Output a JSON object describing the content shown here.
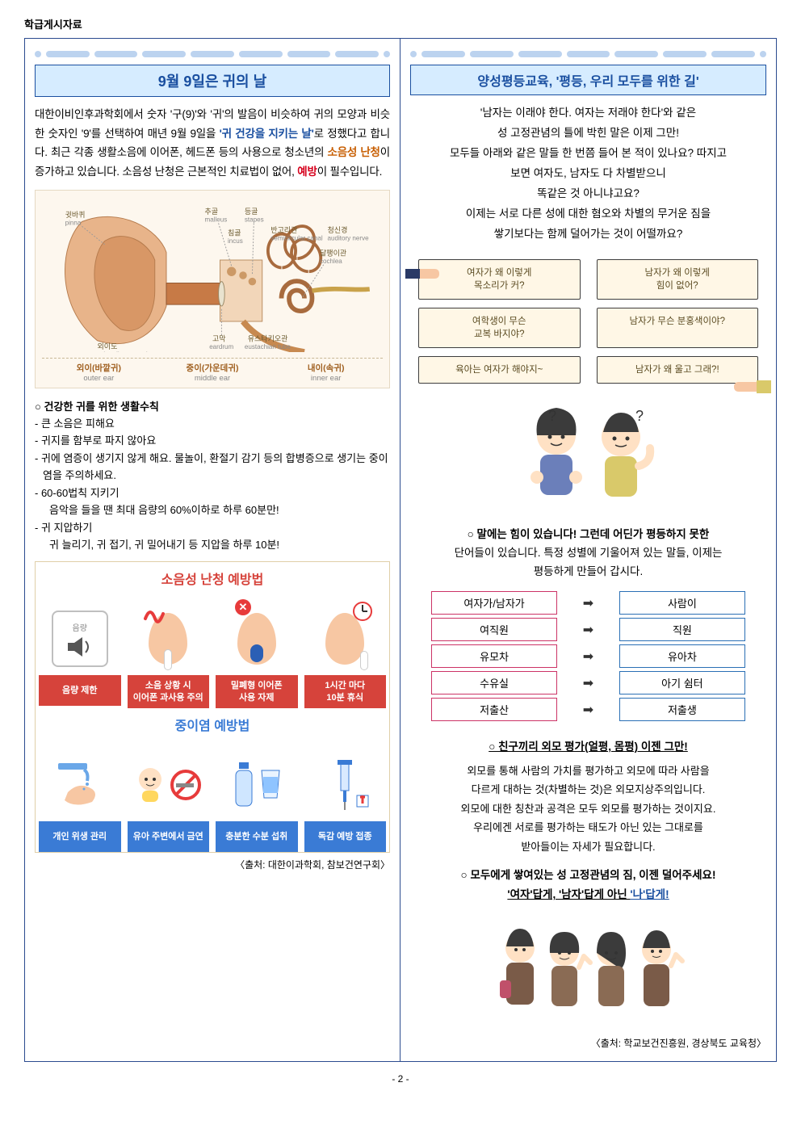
{
  "doc_label": "학급게시자료",
  "page_number": "- 2 -",
  "left": {
    "banner_title": "9월 9일은 귀의 날",
    "intro_parts": {
      "p1": "대한이비인후과학회에서 숫자 '구(9)'와 '귀'의 발음이 비슷하여 귀의 모양과 비슷한 숫자인 '9'를 선택하여 매년 9월 9일을 ",
      "kw1": "'귀 건강을 지키는 날'",
      "p2": "로 정했다고 합니다. 최근 각종 생활소음에 이어폰, 헤드폰 등의 사용으로 청소년의 ",
      "kw2": "소음성 난청",
      "p3": "이 증가하고 있습니다. 소음성 난청은 근본적인 치료법이 없어, ",
      "kw3": "예방",
      "p4": "이 필수입니다."
    },
    "ear_labels": {
      "pinna_ko": "귓바퀴",
      "pinna_en": "pinna",
      "malleus_ko": "추골",
      "malleus_en": "malleus",
      "stapes_ko": "등골",
      "stapes_en": "stapes",
      "incus_ko": "침골",
      "incus_en": "incus",
      "semicircular_ko": "반고리관",
      "semicircular_en": "semicircular canal",
      "auditory_ko": "청신경",
      "auditory_en": "auditory nerve",
      "cochlea_ko": "달팽이관",
      "cochlea_en": "cochlea",
      "eac_ko": "외이도",
      "eac_en": "external auditory canal",
      "eardrum_ko": "고막",
      "eardrum_en": "eardrum",
      "eustachian_ko": "유스타키오관",
      "eustachian_en": "eustachian tube"
    },
    "ear_regions": {
      "outer_ko": "외이(바깥귀)",
      "outer_en": "outer ear",
      "middle_ko": "중이(가운데귀)",
      "middle_en": "middle ear",
      "inner_ko": "내이(속귀)",
      "inner_en": "inner ear"
    },
    "rules": {
      "title": "○ 건강한 귀를 위한 생활수칙",
      "r1": "- 큰 소음은 피해요",
      "r2": "- 귀지를 함부로 파지 않아요",
      "r3": "- 귀에 염증이 생기지 않게 해요. 물놀이, 환절기 감기 등의 합병증으로 생기는 중이염을 주의하세요.",
      "r4": "- 60-60법칙 지키기",
      "r4b": "음악을 들을 땐 최대 음량의 60%이하로 하루 60분만!",
      "r5": "- 귀 지압하기",
      "r5b": "귀 늘리기, 귀 접기, 귀 밀어내기 등 지압을 하루 10분!"
    },
    "info1": {
      "title": "소음성 난청 예방법",
      "vol_char": "음량",
      "c1": "음량 제한",
      "c2": "소음 상황 시\n이어폰 과사용 주의",
      "c3": "밀폐형 이어폰\n사용 자제",
      "c4": "1시간 마다\n10분 휴식"
    },
    "info2": {
      "title": "중이염 예방법",
      "c1": "개인 위생 관리",
      "c2": "유아 주변에서 금연",
      "c3": "충분한 수분 섭취",
      "c4": "독감 예방 접종"
    },
    "source": "〈출처: 대한이과학회, 참보건연구회〉"
  },
  "right": {
    "banner_title": "양성평등교육, '평등, 우리 모두를 위한 길'",
    "intro": "'남자는 이래야 한다. 여자는 저래야 한다'와 같은\n성 고정관념의 틀에 박힌 말은 이제 그만!\n모두들 아래와 같은 말들 한 번쯤 들어 본 적이 있나요? 따지고\n보면 여자도, 남자도 다 차별받으니\n똑같은 것 아니냐고요?\n이제는 서로 다른 성에 대한 혐오와 차별의 무거운 짐을\n쌓기보다는 함께 덜어가는 것이 어떨까요?",
    "bubbles": {
      "b1": "여자가 왜 이렇게\n목소리가 커?",
      "b2": "남자가 왜 이렇게\n힘이 없어?",
      "b3": "여학생이 무슨\n교복 바지야?",
      "b4": "남자가 무슨 분홍색이야?",
      "b5": "육아는 여자가 해야지~",
      "b6": "남자가 왜 울고 그래?!"
    },
    "words_head1": "○ 말에는 힘이 있습니다! 그런데 어딘가 평등하지 못한",
    "words_head2": "단어들이 있습니다. 특정 성별에 기울어져 있는 말들, 이제는",
    "words_head3": "평등하게 만들어 갑시다.",
    "word_pairs": [
      {
        "l": "여자가/남자가",
        "r": "사람이"
      },
      {
        "l": "여직원",
        "r": "직원"
      },
      {
        "l": "유모차",
        "r": "유아차"
      },
      {
        "l": "수유실",
        "r": "아기 쉼터"
      },
      {
        "l": "저출산",
        "r": "저출생"
      }
    ],
    "looks_head": "○ 친구끼리 외모 평가(얼평, 몸평) 이젠 그만!",
    "looks_body": "외모를 통해 사람의 가치를 평가하고 외모에 따라 사람을\n다르게 대하는 것(차별하는 것)은 외모지상주의입니다.\n외모에 대한 칭찬과 공격은 모두 외모를 평가하는 것이지요.\n우리에겐 서로를 평가하는 태도가 아닌 있는 그대로를\n받아들이는 자세가 필요합니다.",
    "closing1": "○ 모두에게 쌓여있는 성 고정관념의 짐, 이젠 덜어주세요!",
    "closing2_pre": "'여자'답게, '남자'답게 아닌 ",
    "closing2_em": "'나'답게!",
    "source": "〈출처: 학교보건진흥원, 경상북도 교육청〉"
  },
  "colors": {
    "frame": "#2b4b8f",
    "banner_bg": "#d6ecff",
    "banner_text": "#1a4fa0",
    "red": "#d6433b",
    "blue": "#3a7bd5",
    "speech_bg": "#fff7e6",
    "word_left_border": "#cc3366",
    "word_right_border": "#2a6fb5"
  }
}
